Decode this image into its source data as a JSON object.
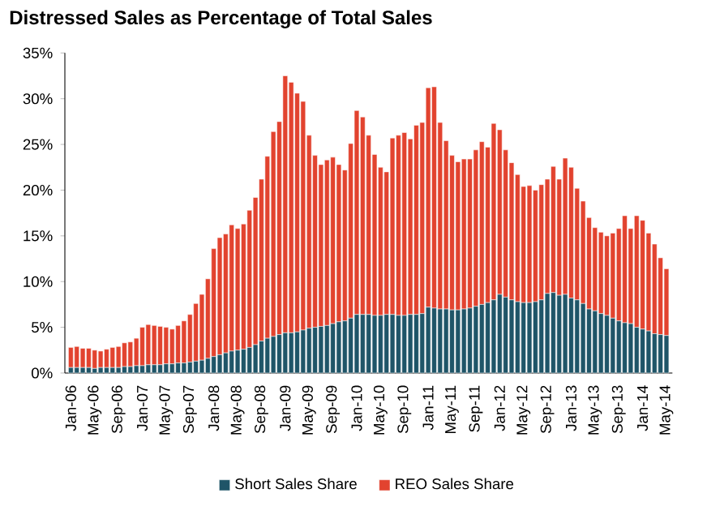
{
  "chart_data": {
    "type": "bar",
    "stacked": true,
    "title": "Distressed Sales as Percentage of Total Sales",
    "categories": [
      "Jan-06",
      null,
      null,
      null,
      "May-06",
      null,
      null,
      null,
      "Sep-06",
      null,
      null,
      null,
      "Jan-07",
      null,
      null,
      null,
      "May-07",
      null,
      null,
      null,
      "Sep-07",
      null,
      null,
      null,
      "Jan-08",
      null,
      null,
      null,
      "May-08",
      null,
      null,
      null,
      "Sep-08",
      null,
      null,
      null,
      "Jan-09",
      null,
      null,
      null,
      "May-09",
      null,
      null,
      null,
      "Sep-09",
      null,
      null,
      null,
      "Jan-10",
      null,
      null,
      null,
      "May-10",
      null,
      null,
      null,
      "Sep-10",
      null,
      null,
      null,
      "Jan-11",
      null,
      null,
      null,
      "May-11",
      null,
      null,
      null,
      "Sep-11",
      null,
      null,
      null,
      "Jan-12",
      null,
      null,
      null,
      "May-12",
      null,
      null,
      null,
      "Sep-12",
      null,
      null,
      null,
      "Jan-13",
      null,
      null,
      null,
      "May-13",
      null,
      null,
      null,
      "Sep-13",
      null,
      null,
      null,
      "Jan-14",
      null,
      null,
      null,
      "May-14"
    ],
    "series": [
      {
        "name": "Short Sales Share",
        "color": "#1f5568",
        "values": [
          0.6,
          0.6,
          0.6,
          0.6,
          0.5,
          0.6,
          0.6,
          0.6,
          0.6,
          0.7,
          0.7,
          0.8,
          0.8,
          0.9,
          0.9,
          0.9,
          1.0,
          1.0,
          1.1,
          1.1,
          1.2,
          1.3,
          1.4,
          1.6,
          1.8,
          2.0,
          2.2,
          2.4,
          2.5,
          2.6,
          2.8,
          3.1,
          3.5,
          3.8,
          4.0,
          4.2,
          4.4,
          4.4,
          4.5,
          4.7,
          4.9,
          5.0,
          5.1,
          5.2,
          5.4,
          5.6,
          5.7,
          6.0,
          6.4,
          6.4,
          6.4,
          6.3,
          6.3,
          6.4,
          6.4,
          6.3,
          6.3,
          6.4,
          6.4,
          6.5,
          7.2,
          7.1,
          7.0,
          7.0,
          6.9,
          6.9,
          7.0,
          7.1,
          7.3,
          7.5,
          7.7,
          8.0,
          8.6,
          8.3,
          8.0,
          7.8,
          7.7,
          7.7,
          7.8,
          8.0,
          8.7,
          8.8,
          8.5,
          8.6,
          8.2,
          8.0,
          7.6,
          7.0,
          6.8,
          6.5,
          6.3,
          6.0,
          5.7,
          5.5,
          5.4,
          5.0,
          4.8,
          4.6,
          4.3,
          4.2,
          4.1
        ]
      },
      {
        "name": "REO Sales Share",
        "color": "#e2432f",
        "values": [
          2.2,
          2.3,
          2.1,
          2.1,
          2.0,
          1.8,
          2.0,
          2.2,
          2.3,
          2.6,
          2.7,
          3.0,
          4.2,
          4.4,
          4.3,
          4.2,
          4.0,
          3.8,
          4.1,
          4.6,
          5.2,
          6.3,
          7.2,
          8.7,
          11.8,
          12.8,
          13.0,
          13.8,
          13.3,
          13.7,
          15.0,
          16.1,
          17.7,
          19.9,
          22.4,
          23.3,
          28.1,
          27.4,
          26.1,
          25.0,
          21.1,
          18.8,
          17.7,
          18.1,
          18.2,
          17.2,
          16.5,
          19.1,
          22.3,
          21.6,
          19.6,
          17.6,
          16.2,
          15.6,
          19.3,
          19.7,
          20.0,
          19.2,
          20.7,
          20.9,
          24.0,
          24.2,
          20.4,
          18.4,
          16.9,
          16.2,
          16.4,
          16.3,
          17.1,
          17.8,
          17.0,
          19.3,
          18.0,
          16.1,
          15.0,
          13.9,
          12.7,
          12.8,
          12.2,
          12.6,
          12.5,
          13.8,
          12.7,
          14.9,
          14.3,
          12.2,
          11.2,
          10.0,
          9.1,
          8.9,
          8.7,
          9.3,
          10.1,
          11.7,
          10.4,
          12.2,
          11.9,
          10.7,
          9.8,
          8.4,
          7.3
        ]
      }
    ],
    "ylim": [
      0,
      35
    ],
    "yticks": [
      {
        "value": 0,
        "label": "0%"
      },
      {
        "value": 5,
        "label": "5%"
      },
      {
        "value": 10,
        "label": "10%"
      },
      {
        "value": 15,
        "label": "15%"
      },
      {
        "value": 20,
        "label": "20%"
      },
      {
        "value": 25,
        "label": "25%"
      },
      {
        "value": 30,
        "label": "30%"
      },
      {
        "value": 35,
        "label": "35%"
      }
    ],
    "grid": false,
    "legend": "bottom"
  }
}
